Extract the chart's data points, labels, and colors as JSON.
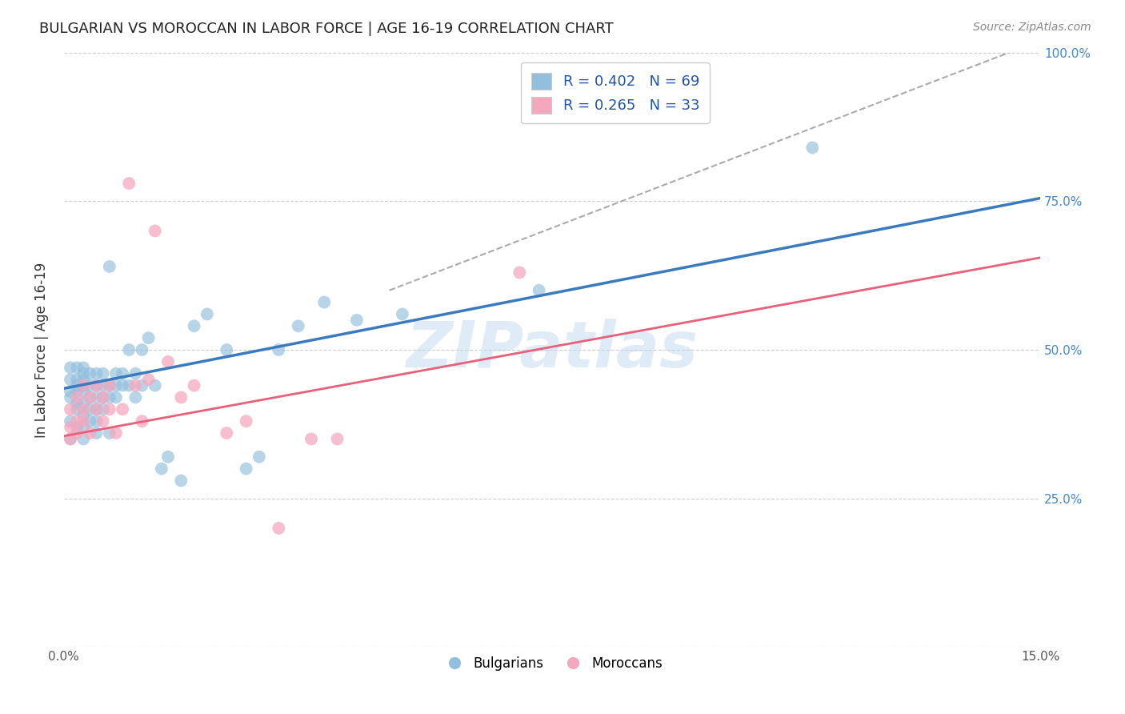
{
  "title": "BULGARIAN VS MOROCCAN IN LABOR FORCE | AGE 16-19 CORRELATION CHART",
  "source_text": "Source: ZipAtlas.com",
  "ylabel": "In Labor Force | Age 16-19",
  "xlim": [
    0.0,
    0.15
  ],
  "ylim": [
    0.0,
    1.0
  ],
  "bg_color": "#ffffff",
  "grid_color": "#cccccc",
  "watermark_text": "ZIPatlas",
  "legend_R_blue": "0.402",
  "legend_N_blue": "69",
  "legend_R_pink": "0.265",
  "legend_N_pink": "33",
  "blue_color": "#92bfdd",
  "pink_color": "#f4a8be",
  "blue_line_color": "#3a7abf",
  "pink_line_color": "#e8607a",
  "dashed_line_color": "#aaaaaa",
  "blue_line_x0": 0.0,
  "blue_line_y0": 0.435,
  "blue_line_x1": 0.15,
  "blue_line_y1": 0.755,
  "pink_line_x0": 0.0,
  "pink_line_y0": 0.355,
  "pink_line_x1": 0.15,
  "pink_line_y1": 0.655,
  "dash_line_x0": 0.05,
  "dash_line_y0": 0.6,
  "dash_line_x1": 0.15,
  "dash_line_y1": 1.02,
  "bulgarians_x": [
    0.001,
    0.001,
    0.001,
    0.001,
    0.001,
    0.001,
    0.002,
    0.002,
    0.002,
    0.002,
    0.002,
    0.002,
    0.002,
    0.003,
    0.003,
    0.003,
    0.003,
    0.003,
    0.003,
    0.003,
    0.003,
    0.003,
    0.004,
    0.004,
    0.004,
    0.004,
    0.004,
    0.005,
    0.005,
    0.005,
    0.005,
    0.005,
    0.005,
    0.006,
    0.006,
    0.006,
    0.006,
    0.007,
    0.007,
    0.007,
    0.007,
    0.008,
    0.008,
    0.008,
    0.009,
    0.009,
    0.01,
    0.01,
    0.011,
    0.011,
    0.012,
    0.012,
    0.013,
    0.014,
    0.015,
    0.016,
    0.018,
    0.02,
    0.022,
    0.025,
    0.028,
    0.03,
    0.033,
    0.036,
    0.04,
    0.045,
    0.052,
    0.073,
    0.115
  ],
  "bulgarians_y": [
    0.42,
    0.43,
    0.45,
    0.47,
    0.35,
    0.38,
    0.41,
    0.43,
    0.45,
    0.47,
    0.37,
    0.4,
    0.44,
    0.39,
    0.41,
    0.43,
    0.45,
    0.47,
    0.37,
    0.35,
    0.44,
    0.46,
    0.4,
    0.42,
    0.44,
    0.46,
    0.38,
    0.4,
    0.42,
    0.44,
    0.46,
    0.36,
    0.38,
    0.42,
    0.44,
    0.46,
    0.4,
    0.42,
    0.44,
    0.36,
    0.64,
    0.42,
    0.44,
    0.46,
    0.44,
    0.46,
    0.5,
    0.44,
    0.42,
    0.46,
    0.44,
    0.5,
    0.52,
    0.44,
    0.3,
    0.32,
    0.28,
    0.54,
    0.56,
    0.5,
    0.3,
    0.32,
    0.5,
    0.54,
    0.58,
    0.55,
    0.56,
    0.6,
    0.84
  ],
  "moroccans_x": [
    0.001,
    0.001,
    0.001,
    0.002,
    0.002,
    0.002,
    0.003,
    0.003,
    0.003,
    0.004,
    0.004,
    0.005,
    0.005,
    0.006,
    0.006,
    0.007,
    0.007,
    0.008,
    0.009,
    0.01,
    0.011,
    0.012,
    0.013,
    0.014,
    0.016,
    0.018,
    0.02,
    0.025,
    0.028,
    0.033,
    0.038,
    0.042,
    0.07
  ],
  "moroccans_y": [
    0.37,
    0.35,
    0.4,
    0.38,
    0.36,
    0.42,
    0.4,
    0.38,
    0.44,
    0.36,
    0.42,
    0.4,
    0.44,
    0.38,
    0.42,
    0.4,
    0.44,
    0.36,
    0.4,
    0.78,
    0.44,
    0.38,
    0.45,
    0.7,
    0.48,
    0.42,
    0.44,
    0.36,
    0.38,
    0.2,
    0.35,
    0.35,
    0.63
  ]
}
